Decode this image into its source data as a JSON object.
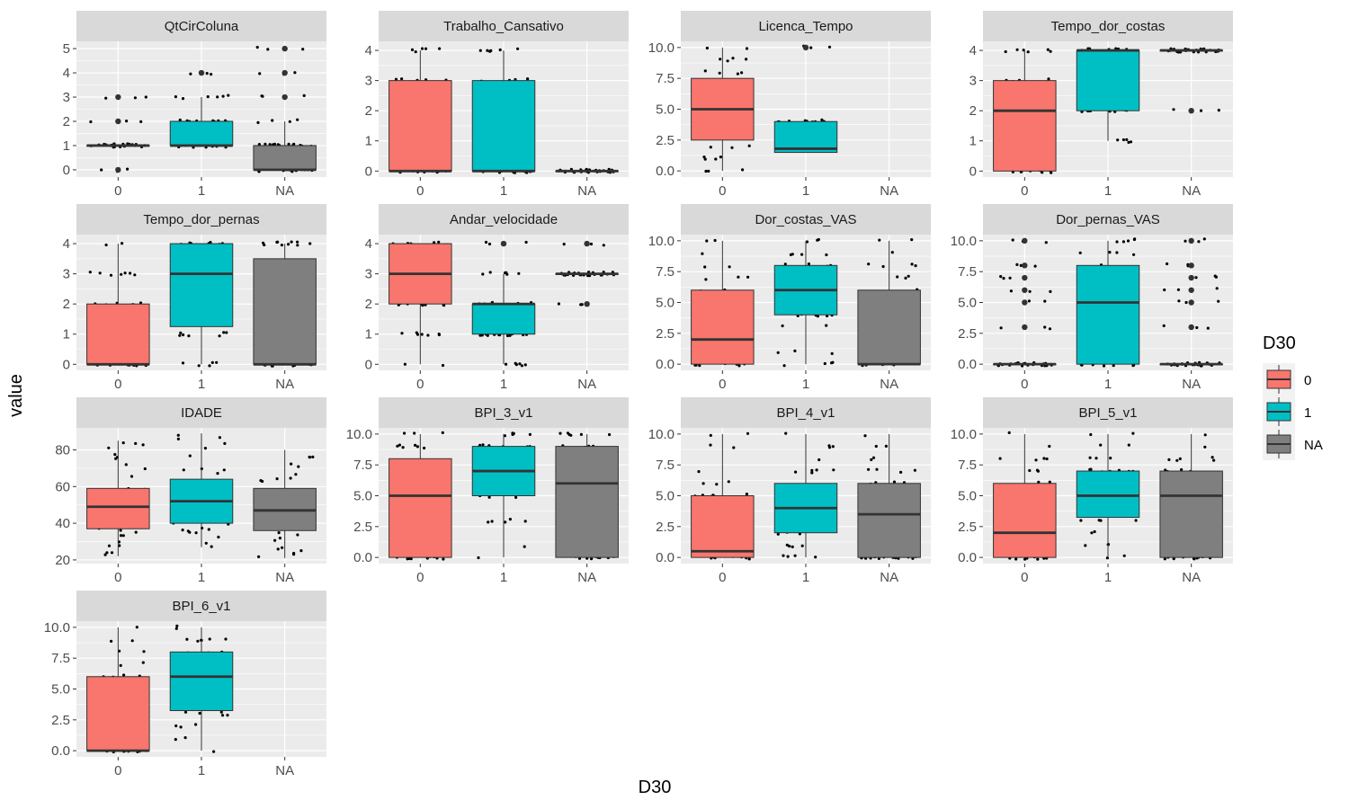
{
  "chart_data": {
    "type": "boxplot",
    "xlabel": "D30",
    "ylabel": "value",
    "categories": [
      "0",
      "1",
      "NA"
    ],
    "legend": {
      "title": "D30",
      "placement": "right",
      "entries": [
        {
          "label": "0",
          "color": "#F8766D"
        },
        {
          "label": "1",
          "color": "#00BFC4"
        },
        {
          "label": "NA",
          "color": "#7F7F7F"
        }
      ]
    },
    "panels": [
      {
        "title": "QtCirColuna",
        "ylim": [
          -0.3,
          5.3
        ],
        "yticks": [
          0,
          1,
          2,
          3,
          4,
          5
        ],
        "ytick_labels": [
          "0",
          "1",
          "2",
          "3",
          "4",
          "5"
        ],
        "boxes": [
          {
            "category": "0",
            "min": 1,
            "q1": 1,
            "median": 1,
            "q3": 1,
            "max": 1,
            "outliers": [
              0,
              2,
              3
            ]
          },
          {
            "category": "1",
            "min": 1,
            "q1": 1,
            "median": 1,
            "q3": 2,
            "max": 3,
            "outliers": [
              4
            ]
          },
          {
            "category": "NA",
            "min": 0,
            "q1": 0,
            "median": 0,
            "q3": 1,
            "max": 2,
            "outliers": [
              3,
              4,
              5
            ]
          }
        ]
      },
      {
        "title": "Trabalho_Cansativo",
        "ylim": [
          -0.2,
          4.3
        ],
        "yticks": [
          0,
          1,
          2,
          3,
          4
        ],
        "ytick_labels": [
          "0",
          "1",
          "2",
          "3",
          "4"
        ],
        "boxes": [
          {
            "category": "0",
            "min": 0,
            "q1": 0,
            "median": 0,
            "q3": 3,
            "max": 4,
            "outliers": []
          },
          {
            "category": "1",
            "min": 0,
            "q1": 0,
            "median": 0,
            "q3": 3,
            "max": 4,
            "outliers": []
          },
          {
            "category": "NA",
            "min": 0,
            "q1": 0,
            "median": 0,
            "q3": 0,
            "max": 0,
            "outliers": []
          }
        ]
      },
      {
        "title": "Licenca_Tempo",
        "ylim": [
          -0.5,
          10.5
        ],
        "yticks": [
          0,
          2.5,
          5,
          7.5,
          10
        ],
        "ytick_labels": [
          "0.0",
          "2.5",
          "5.0",
          "7.5",
          "10.0"
        ],
        "boxes": [
          {
            "category": "0",
            "min": 0,
            "q1": 2.5,
            "median": 5,
            "q3": 7.5,
            "max": 10,
            "outliers": []
          },
          {
            "category": "1",
            "min": 1.5,
            "q1": 1.5,
            "median": 1.8,
            "q3": 4,
            "max": 4,
            "outliers": [
              10
            ]
          }
        ]
      },
      {
        "title": "Tempo_dor_costas",
        "ylim": [
          -0.2,
          4.3
        ],
        "yticks": [
          0,
          1,
          2,
          3,
          4
        ],
        "ytick_labels": [
          "0",
          "1",
          "2",
          "3",
          "4"
        ],
        "boxes": [
          {
            "category": "0",
            "min": 0,
            "q1": 0,
            "median": 2,
            "q3": 3,
            "max": 4,
            "outliers": []
          },
          {
            "category": "1",
            "min": 1,
            "q1": 2,
            "median": 4,
            "q3": 4,
            "max": 4,
            "outliers": []
          },
          {
            "category": "NA",
            "min": 4,
            "q1": 4,
            "median": 4,
            "q3": 4,
            "max": 4,
            "outliers": [
              2
            ]
          }
        ]
      },
      {
        "title": "Tempo_dor_pernas",
        "ylim": [
          -0.2,
          4.3
        ],
        "yticks": [
          0,
          1,
          2,
          3,
          4
        ],
        "ytick_labels": [
          "0",
          "1",
          "2",
          "3",
          "4"
        ],
        "boxes": [
          {
            "category": "0",
            "min": 0,
            "q1": 0,
            "median": 0,
            "q3": 2,
            "max": 4,
            "outliers": []
          },
          {
            "category": "1",
            "min": 0,
            "q1": 1.25,
            "median": 3,
            "q3": 4,
            "max": 4,
            "outliers": []
          },
          {
            "category": "NA",
            "min": 0,
            "q1": 0,
            "median": 0,
            "q3": 3.5,
            "max": 4,
            "outliers": []
          }
        ]
      },
      {
        "title": "Andar_velocidade",
        "ylim": [
          -0.2,
          4.3
        ],
        "yticks": [
          0,
          1,
          2,
          3,
          4
        ],
        "ytick_labels": [
          "0",
          "1",
          "2",
          "3",
          "4"
        ],
        "boxes": [
          {
            "category": "0",
            "min": 0,
            "q1": 2,
            "median": 3,
            "q3": 4,
            "max": 4,
            "outliers": []
          },
          {
            "category": "1",
            "min": 0,
            "q1": 1,
            "median": 2,
            "q3": 2,
            "max": 3,
            "outliers": [
              4
            ]
          },
          {
            "category": "NA",
            "min": 3,
            "q1": 3,
            "median": 3,
            "q3": 3,
            "max": 3,
            "outliers": [
              2,
              4
            ]
          }
        ]
      },
      {
        "title": "Dor_costas_VAS",
        "ylim": [
          -0.5,
          10.5
        ],
        "yticks": [
          0,
          2.5,
          5,
          7.5,
          10
        ],
        "ytick_labels": [
          "0.0",
          "2.5",
          "5.0",
          "7.5",
          "10.0"
        ],
        "boxes": [
          {
            "category": "0",
            "min": 0,
            "q1": 0,
            "median": 2,
            "q3": 6,
            "max": 10,
            "outliers": []
          },
          {
            "category": "1",
            "min": 0,
            "q1": 4,
            "median": 6,
            "q3": 8,
            "max": 10,
            "outliers": []
          },
          {
            "category": "NA",
            "min": 0,
            "q1": 0,
            "median": 0,
            "q3": 6,
            "max": 10,
            "outliers": []
          }
        ]
      },
      {
        "title": "Dor_pernas_VAS",
        "ylim": [
          -0.5,
          10.5
        ],
        "yticks": [
          0,
          2.5,
          5,
          7.5,
          10
        ],
        "ytick_labels": [
          "0.0",
          "2.5",
          "5.0",
          "7.5",
          "10.0"
        ],
        "boxes": [
          {
            "category": "0",
            "min": 0,
            "q1": 0,
            "median": 0,
            "q3": 0,
            "max": 0,
            "outliers": [
              3,
              5,
              6,
              7,
              8,
              10
            ]
          },
          {
            "category": "1",
            "min": 0,
            "q1": 0,
            "median": 5,
            "q3": 8,
            "max": 10,
            "outliers": []
          },
          {
            "category": "NA",
            "min": 0,
            "q1": 0,
            "median": 0,
            "q3": 0,
            "max": 0,
            "outliers": [
              3,
              5,
              6,
              7,
              8,
              10
            ]
          }
        ]
      },
      {
        "title": "IDADE",
        "ylim": [
          18,
          92
        ],
        "yticks": [
          20,
          40,
          60,
          80
        ],
        "ytick_labels": [
          "20",
          "40",
          "60",
          "80"
        ],
        "boxes": [
          {
            "category": "0",
            "min": 22,
            "q1": 37,
            "median": 49,
            "q3": 59,
            "max": 85,
            "outliers": []
          },
          {
            "category": "1",
            "min": 27,
            "q1": 40,
            "median": 52,
            "q3": 64,
            "max": 89,
            "outliers": []
          },
          {
            "category": "NA",
            "min": 21,
            "q1": 36,
            "median": 47,
            "q3": 59,
            "max": 80,
            "outliers": []
          }
        ]
      },
      {
        "title": "BPI_3_v1",
        "ylim": [
          -0.5,
          10.5
        ],
        "yticks": [
          0,
          2.5,
          5,
          7.5,
          10
        ],
        "ytick_labels": [
          "0.0",
          "2.5",
          "5.0",
          "7.5",
          "10.0"
        ],
        "boxes": [
          {
            "category": "0",
            "min": 0,
            "q1": 0,
            "median": 5,
            "q3": 8,
            "max": 10,
            "outliers": []
          },
          {
            "category": "1",
            "min": 0,
            "q1": 5,
            "median": 7,
            "q3": 9,
            "max": 10,
            "outliers": []
          },
          {
            "category": "NA",
            "min": 0,
            "q1": 0,
            "median": 6,
            "q3": 9,
            "max": 10,
            "outliers": []
          }
        ]
      },
      {
        "title": "BPI_4_v1",
        "ylim": [
          -0.5,
          10.5
        ],
        "yticks": [
          0,
          2.5,
          5,
          7.5,
          10
        ],
        "ytick_labels": [
          "0.0",
          "2.5",
          "5.0",
          "7.5",
          "10.0"
        ],
        "boxes": [
          {
            "category": "0",
            "min": 0,
            "q1": 0,
            "median": 0.5,
            "q3": 5,
            "max": 10,
            "outliers": []
          },
          {
            "category": "1",
            "min": 0,
            "q1": 2,
            "median": 4,
            "q3": 6,
            "max": 10,
            "outliers": []
          },
          {
            "category": "NA",
            "min": 0,
            "q1": 0,
            "median": 3.5,
            "q3": 6,
            "max": 10,
            "outliers": []
          }
        ]
      },
      {
        "title": "BPI_5_v1",
        "ylim": [
          -0.5,
          10.5
        ],
        "yticks": [
          0,
          2.5,
          5,
          7.5,
          10
        ],
        "ytick_labels": [
          "0.0",
          "2.5",
          "5.0",
          "7.5",
          "10.0"
        ],
        "boxes": [
          {
            "category": "0",
            "min": 0,
            "q1": 0,
            "median": 2,
            "q3": 6,
            "max": 10,
            "outliers": []
          },
          {
            "category": "1",
            "min": 0,
            "q1": 3.25,
            "median": 5,
            "q3": 7,
            "max": 10,
            "outliers": []
          },
          {
            "category": "NA",
            "min": 0,
            "q1": 0,
            "median": 5,
            "q3": 7,
            "max": 10,
            "outliers": []
          }
        ]
      },
      {
        "title": "BPI_6_v1",
        "ylim": [
          -0.5,
          10.5
        ],
        "yticks": [
          0,
          2.5,
          5,
          7.5,
          10
        ],
        "ytick_labels": [
          "0.0",
          "2.5",
          "5.0",
          "7.5",
          "10.0"
        ],
        "boxes": [
          {
            "category": "0",
            "min": 0,
            "q1": 0,
            "median": 0,
            "q3": 6,
            "max": 10,
            "outliers": []
          },
          {
            "category": "1",
            "min": 0,
            "q1": 3.25,
            "median": 6,
            "q3": 8,
            "max": 10,
            "outliers": []
          }
        ]
      }
    ]
  }
}
